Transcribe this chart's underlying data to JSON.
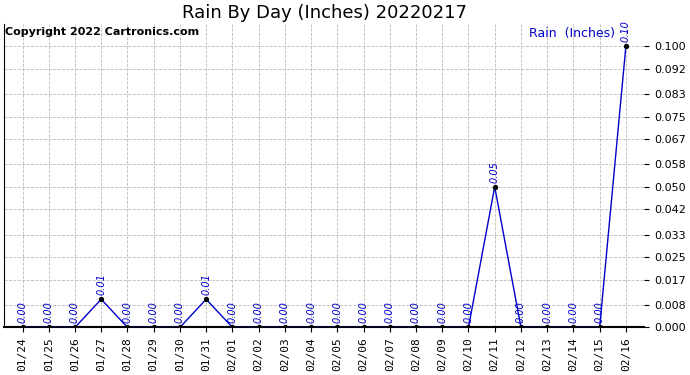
{
  "title": "Rain By Day (Inches) 20220217",
  "copyright": "Copyright 2022 Cartronics.com",
  "legend_label": "Rain  (Inches)",
  "dates": [
    "01/24",
    "01/25",
    "01/26",
    "01/27",
    "01/28",
    "01/29",
    "01/30",
    "01/31",
    "02/01",
    "02/02",
    "02/03",
    "02/04",
    "02/05",
    "02/06",
    "02/07",
    "02/08",
    "02/09",
    "02/10",
    "02/11",
    "02/12",
    "02/13",
    "02/14",
    "02/15",
    "02/16"
  ],
  "values": [
    0.0,
    0.0,
    0.0,
    0.01,
    0.0,
    0.0,
    0.0,
    0.01,
    0.0,
    0.0,
    0.0,
    0.0,
    0.0,
    0.0,
    0.0,
    0.0,
    0.0,
    0.0,
    0.05,
    0.0,
    0.0,
    0.0,
    0.0,
    0.1
  ],
  "line_color": "#0000cc",
  "marker_color": "#0000aa",
  "annot_color": "#0000cc",
  "background_color": "#ffffff",
  "grid_color": "#bbbbbb",
  "ylim": [
    0.0,
    0.108
  ],
  "yticks": [
    0.0,
    0.008,
    0.017,
    0.025,
    0.033,
    0.042,
    0.05,
    0.058,
    0.067,
    0.075,
    0.083,
    0.092,
    0.1
  ],
  "title_fontsize": 13,
  "annot_fontsize": 7,
  "tick_fontsize": 8,
  "copyright_fontsize": 8,
  "legend_fontsize": 9
}
